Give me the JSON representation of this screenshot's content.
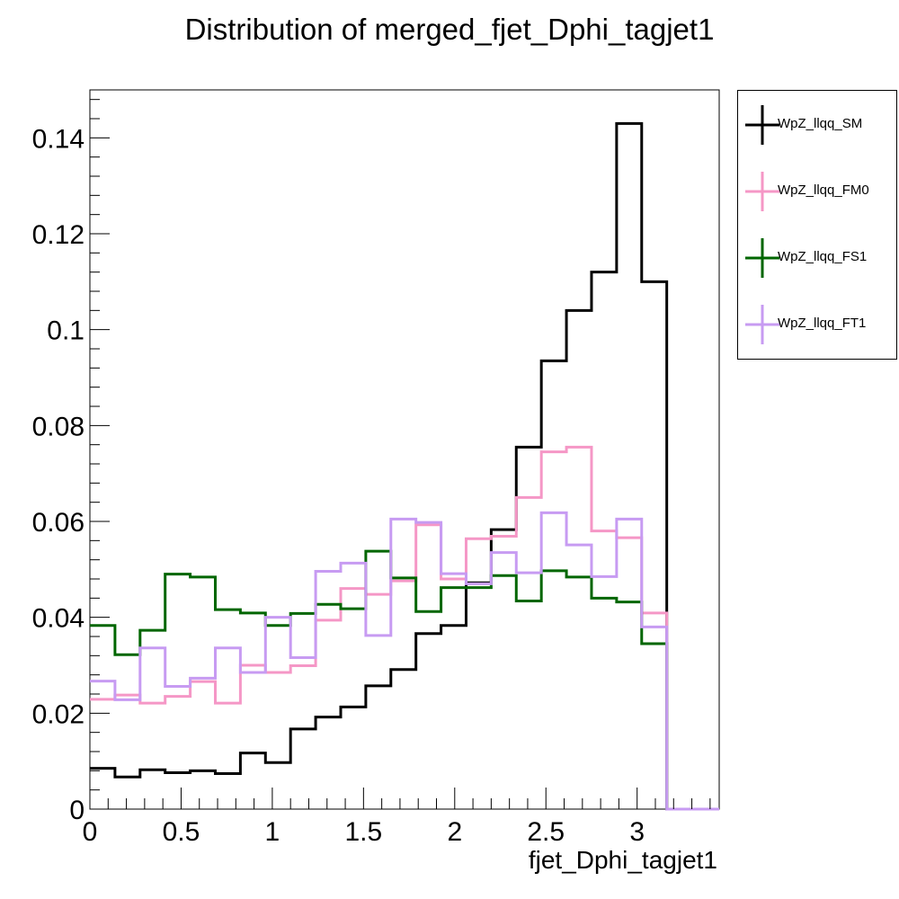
{
  "chart_data": {
    "type": "histogram-step",
    "title": "Distribution of merged_fjet_Dphi_tagjet1",
    "xlabel": "fjet_Dphi_tagjet1",
    "ylabel": "",
    "xlim": [
      0,
      3.45
    ],
    "ylim": [
      0,
      0.15
    ],
    "x_ticks": [
      "0",
      "0.5",
      "1",
      "1.5",
      "2",
      "2.5",
      "3"
    ],
    "y_ticks": [
      "0",
      "0.02",
      "0.04",
      "0.06",
      "0.08",
      "0.1",
      "0.12",
      "0.14"
    ],
    "bin_edges": [
      0,
      0.1375,
      0.275,
      0.4125,
      0.55,
      0.6875,
      0.825,
      0.9625,
      1.1,
      1.2375,
      1.375,
      1.5125,
      1.65,
      1.7875,
      1.925,
      2.0625,
      2.2,
      2.3375,
      2.475,
      2.6125,
      2.75,
      2.8875,
      3.025,
      3.1625,
      3.3,
      3.45
    ],
    "series": [
      {
        "name": "WpZ_llqq_SM",
        "color": "#000000",
        "values": [
          0.0085,
          0.0067,
          0.0082,
          0.0076,
          0.008,
          0.0074,
          0.0117,
          0.0097,
          0.0167,
          0.0192,
          0.0213,
          0.0257,
          0.0291,
          0.0366,
          0.0383,
          0.0472,
          0.0583,
          0.0755,
          0.0935,
          0.104,
          0.112,
          0.143,
          0.11,
          0.0,
          0.0
        ]
      },
      {
        "name": "WpZ_llqq_FM0",
        "color": "#f597c6",
        "values": [
          0.0229,
          0.0238,
          0.0221,
          0.0235,
          0.0266,
          0.0221,
          0.03,
          0.0285,
          0.0299,
          0.0394,
          0.046,
          0.0448,
          0.0476,
          0.0593,
          0.048,
          0.0564,
          0.0569,
          0.065,
          0.0745,
          0.0755,
          0.058,
          0.0566,
          0.0409,
          0.0,
          0.0
        ]
      },
      {
        "name": "WpZ_llqq_FS1",
        "color": "#006600",
        "values": [
          0.0383,
          0.0322,
          0.0373,
          0.049,
          0.0484,
          0.0416,
          0.0409,
          0.0383,
          0.0408,
          0.0427,
          0.0418,
          0.0538,
          0.0482,
          0.0412,
          0.0462,
          0.0462,
          0.0487,
          0.0434,
          0.0497,
          0.0484,
          0.044,
          0.0432,
          0.0345,
          0.0,
          0.0
        ]
      },
      {
        "name": "WpZ_llqq_FT1",
        "color": "#c79bf2",
        "values": [
          0.0267,
          0.0228,
          0.0336,
          0.0256,
          0.0273,
          0.0336,
          0.0285,
          0.04,
          0.0316,
          0.0496,
          0.0513,
          0.0362,
          0.0605,
          0.0598,
          0.0491,
          0.047,
          0.0535,
          0.0493,
          0.0618,
          0.0551,
          0.0485,
          0.0605,
          0.038,
          0.0,
          0.0
        ]
      }
    ]
  }
}
